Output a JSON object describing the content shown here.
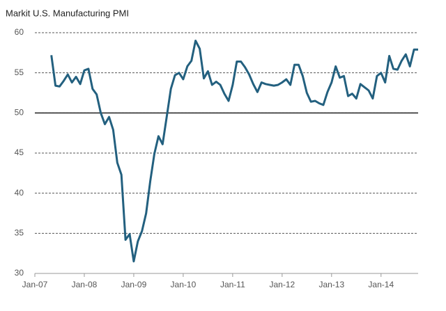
{
  "chart_data": {
    "type": "line",
    "title": "Markit U.S. Manufacturing PMI",
    "x": [
      "2007-05",
      "2007-06",
      "2007-07",
      "2007-08",
      "2007-09",
      "2007-10",
      "2007-11",
      "2007-12",
      "2008-01",
      "2008-02",
      "2008-03",
      "2008-04",
      "2008-05",
      "2008-06",
      "2008-07",
      "2008-08",
      "2008-09",
      "2008-10",
      "2008-11",
      "2008-12",
      "2009-01",
      "2009-02",
      "2009-03",
      "2009-04",
      "2009-05",
      "2009-06",
      "2009-07",
      "2009-08",
      "2009-09",
      "2009-10",
      "2009-11",
      "2009-12",
      "2010-01",
      "2010-02",
      "2010-03",
      "2010-04",
      "2010-05",
      "2010-06",
      "2010-07",
      "2010-08",
      "2010-09",
      "2010-10",
      "2010-11",
      "2010-12",
      "2011-01",
      "2011-02",
      "2011-03",
      "2011-04",
      "2011-05",
      "2011-06",
      "2011-07",
      "2011-08",
      "2011-09",
      "2011-10",
      "2011-11",
      "2011-12",
      "2012-01",
      "2012-02",
      "2012-03",
      "2012-04",
      "2012-05",
      "2012-06",
      "2012-07",
      "2012-08",
      "2012-09",
      "2012-10",
      "2012-11",
      "2012-12",
      "2013-01",
      "2013-02",
      "2013-03",
      "2013-04",
      "2013-05",
      "2013-06",
      "2013-07",
      "2013-08",
      "2013-09",
      "2013-10",
      "2013-11",
      "2013-12",
      "2014-01",
      "2014-02",
      "2014-03",
      "2014-04",
      "2014-05",
      "2014-06",
      "2014-07",
      "2014-08",
      "2014-09",
      "2014-10"
    ],
    "series": [
      {
        "color": "#23607f",
        "values": [
          57.2,
          53.4,
          53.3,
          54.0,
          54.8,
          53.8,
          54.5,
          53.6,
          55.3,
          55.5,
          53.0,
          52.3,
          50.0,
          48.6,
          49.5,
          47.9,
          43.8,
          42.3,
          34.2,
          34.9,
          31.5,
          34.0,
          35.3,
          37.5,
          41.5,
          44.9,
          47.1,
          46.1,
          49.5,
          53.0,
          54.7,
          55.0,
          54.2,
          55.8,
          56.5,
          59.0,
          58.0,
          54.3,
          55.2,
          53.5,
          53.9,
          53.5,
          52.4,
          51.5,
          53.5,
          56.4,
          56.4,
          55.7,
          54.8,
          53.6,
          52.6,
          53.8,
          53.6,
          53.5,
          53.4,
          53.5,
          53.8,
          54.2,
          53.5,
          56.0,
          56.0,
          54.6,
          52.5,
          51.4,
          51.5,
          51.2,
          51.0,
          52.6,
          53.8,
          55.8,
          54.4,
          54.6,
          52.1,
          52.4,
          51.8,
          53.6,
          53.2,
          52.8,
          51.8,
          54.6,
          55.0,
          53.8,
          57.1,
          55.5,
          55.4,
          56.5,
          57.3,
          55.8,
          57.9,
          57.9
        ]
      }
    ],
    "xlim": [
      "2007-01",
      "2014-10"
    ],
    "xticks": [
      {
        "value": "2007-01",
        "label": "Jan-07"
      },
      {
        "value": "2008-01",
        "label": "Jan-08"
      },
      {
        "value": "2009-01",
        "label": "Jan-09"
      },
      {
        "value": "2010-01",
        "label": "Jan-10"
      },
      {
        "value": "2011-01",
        "label": "Jan-11"
      },
      {
        "value": "2012-01",
        "label": "Jan-12"
      },
      {
        "value": "2013-01",
        "label": "Jan-13"
      },
      {
        "value": "2014-01",
        "label": "Jan-14"
      }
    ],
    "ylim": [
      30,
      60
    ],
    "yticks": [
      30,
      35,
      40,
      45,
      50,
      55,
      60
    ],
    "grid": true,
    "baseline": 50
  }
}
